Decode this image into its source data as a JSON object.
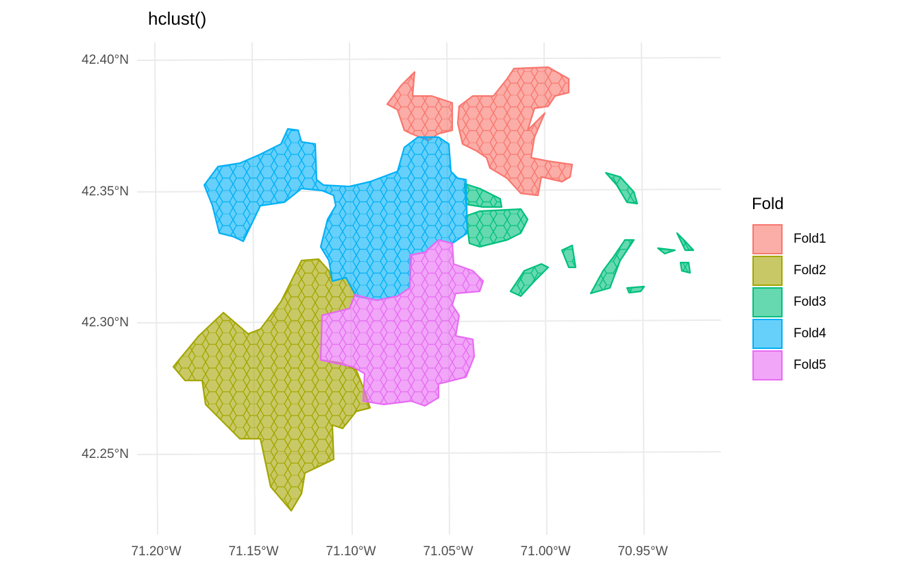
{
  "title": "hclust()",
  "chart_data": {
    "type": "map",
    "title": "hclust()",
    "x_ticks": [
      "71.20°W",
      "71.15°W",
      "71.10°W",
      "71.05°W",
      "71.00°W",
      "70.95°W"
    ],
    "y_ticks": [
      "42.40°N",
      "42.35°N",
      "42.30°N",
      "42.25°N"
    ],
    "xlim": [
      -71.2,
      -70.92
    ],
    "ylim": [
      42.225,
      42.41
    ],
    "grid": true,
    "legend": {
      "title": "Fold",
      "position": "right",
      "items": [
        {
          "label": "Fold1",
          "color": "#F8766D"
        },
        {
          "label": "Fold2",
          "color": "#A3A500"
        },
        {
          "label": "Fold3",
          "color": "#00BF7D"
        },
        {
          "label": "Fold4",
          "color": "#00B0F6"
        },
        {
          "label": "Fold5",
          "color": "#E76BF3"
        }
      ]
    },
    "fill_alpha": 0.6,
    "cell_shape": "hexagon"
  }
}
